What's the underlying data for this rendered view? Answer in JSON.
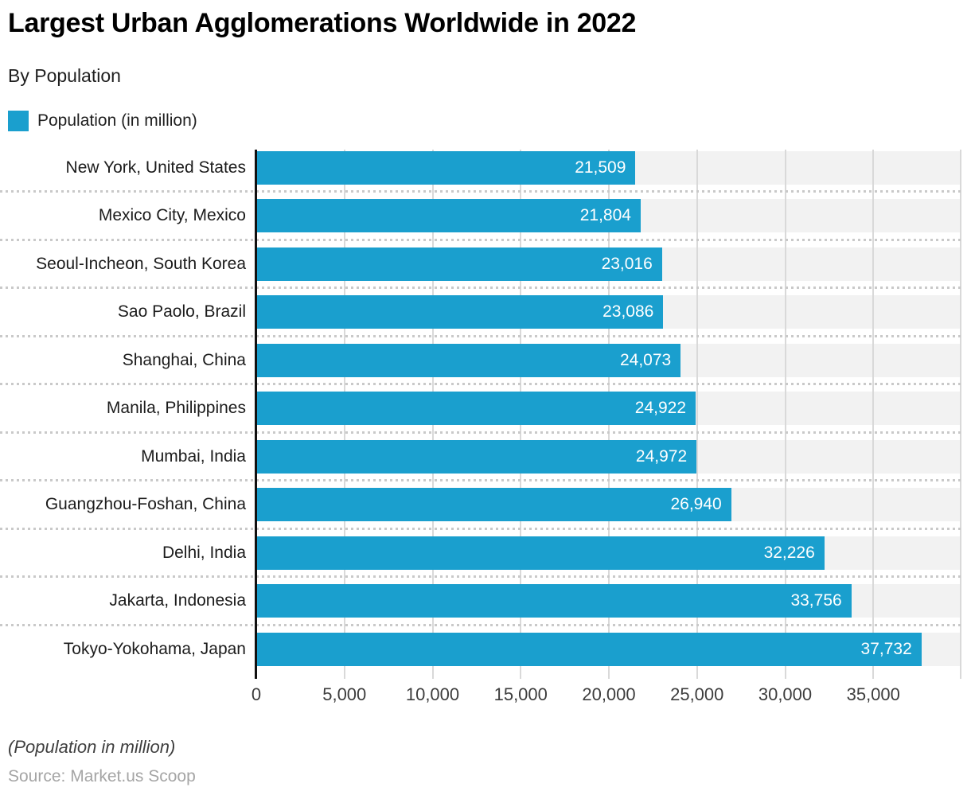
{
  "chart_data": {
    "type": "bar",
    "orientation": "horizontal",
    "title": "Largest Urban Agglomerations Worldwide in 2022",
    "subtitle": "By Population",
    "legend": [
      "Population (in million)"
    ],
    "legend_position": "top-left",
    "categories": [
      "New York, United States",
      "Mexico City, Mexico",
      "Seoul-Incheon, South Korea",
      "Sao Paolo, Brazil",
      "Shanghai, China",
      "Manila, Philippines",
      "Mumbai, India",
      "Guangzhou-Foshan, China",
      "Delhi, India",
      "Jakarta, Indonesia",
      "Tokyo-Yokohama, Japan"
    ],
    "values": [
      21509,
      21804,
      23016,
      23086,
      24073,
      24922,
      24972,
      26940,
      32226,
      33756,
      37732
    ],
    "value_labels": [
      "21,509",
      "21,804",
      "23,016",
      "23,086",
      "24,073",
      "24,922",
      "24,972",
      "26,940",
      "32,226",
      "33,756",
      "37,732"
    ],
    "xlim": [
      0,
      40000
    ],
    "xticks": [
      0,
      5000,
      10000,
      15000,
      20000,
      25000,
      30000,
      35000
    ],
    "xtick_labels": [
      "0",
      "5,000",
      "10,000",
      "15,000",
      "20,000",
      "25,000",
      "30,000",
      "35,000"
    ],
    "grid_xs": [
      5000,
      10000,
      15000,
      20000,
      25000,
      30000,
      35000,
      40000
    ],
    "grid": "vertical",
    "colors": {
      "bar": "#1a9fce",
      "track": "#f2f2f2",
      "gridline": "#d9d9d9",
      "separator": "#c9c9c9",
      "axis": "#111111",
      "value_text": "#ffffff"
    }
  },
  "footnote": "(Population in million)",
  "source": "Source: Market.us Scoop"
}
